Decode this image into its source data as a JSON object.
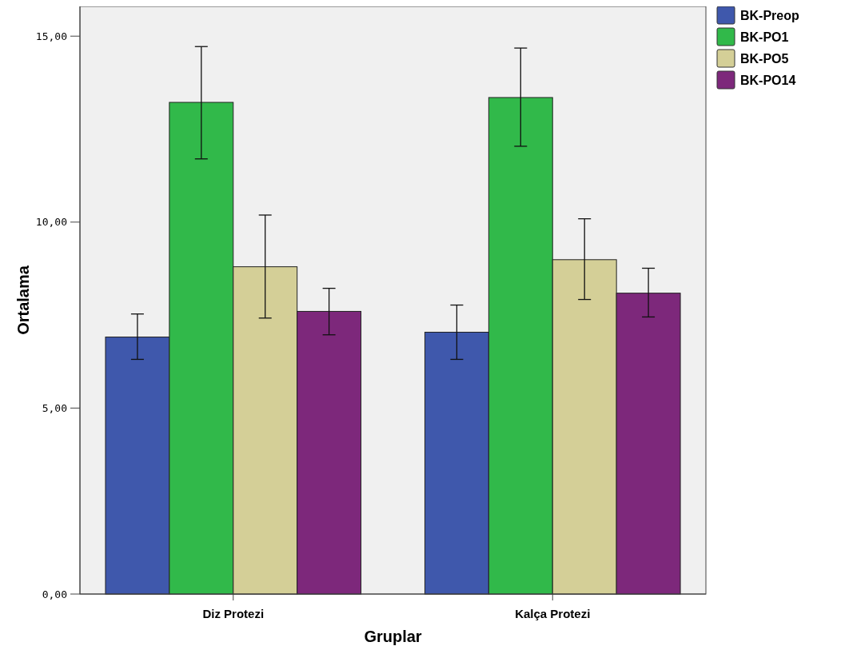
{
  "chart_data": {
    "type": "bar",
    "xlabel": "Gruplar",
    "ylabel": "Ortalama",
    "categories": [
      "Diz Protezi",
      "Kalça Protezi"
    ],
    "series": [
      {
        "name": "BK-Preop",
        "color": "#3f58ac",
        "values": [
          6.91,
          7.04
        ],
        "errors": [
          [
            6.31,
            7.53
          ],
          [
            6.31,
            7.77
          ]
        ]
      },
      {
        "name": "BK-PO1",
        "color": "#31b94a",
        "values": [
          13.22,
          13.35
        ],
        "errors": [
          [
            11.7,
            14.72
          ],
          [
            12.04,
            14.68
          ]
        ]
      },
      {
        "name": "BK-PO5",
        "color": "#d4cf97",
        "values": [
          8.8,
          8.99
        ],
        "errors": [
          [
            7.42,
            10.19
          ],
          [
            7.92,
            10.09
          ]
        ]
      },
      {
        "name": "BK-PO14",
        "color": "#7d287b",
        "values": [
          7.6,
          8.09
        ],
        "errors": [
          [
            6.97,
            8.22
          ],
          [
            7.45,
            8.76
          ]
        ]
      }
    ],
    "ylim": [
      0,
      15.8
    ],
    "yticks": [
      {
        "value": 0,
        "label": "0,00"
      },
      {
        "value": 5,
        "label": "5,00"
      },
      {
        "value": 10,
        "label": "10,00"
      },
      {
        "value": 15,
        "label": "15,00"
      }
    ],
    "grid": false,
    "legend": "top right"
  }
}
